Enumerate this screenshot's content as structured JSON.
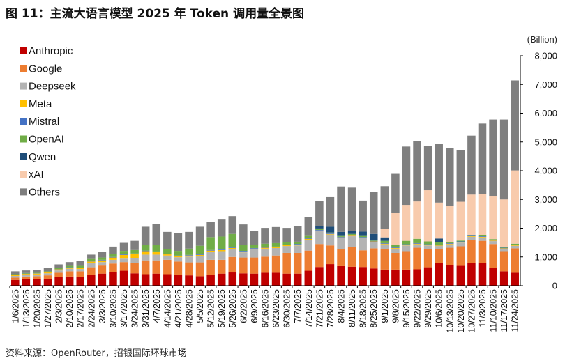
{
  "figure": {
    "title": "图 11：主流大语言模型 2025 年 Token 调用量全景图",
    "source": "资料来源：OpenRouter，招银国际环球市场"
  },
  "chart_data": {
    "type": "bar",
    "stacked": true,
    "unit_label": "(Billion)",
    "y_axis_position": "right",
    "ylim": [
      0,
      8000
    ],
    "yticks": [
      "0",
      "1,000",
      "2,000",
      "3,000",
      "4,000",
      "5,000",
      "6,000",
      "7,000",
      "8,000"
    ],
    "legend_position": "top-left",
    "categories": [
      "1/6/2025",
      "1/13/2025",
      "1/20/2025",
      "1/27/2025",
      "2/3/2025",
      "2/10/2025",
      "2/17/2025",
      "2/24/2025",
      "3/3/2025",
      "3/10/2025",
      "3/17/2025",
      "3/24/2025",
      "3/31/2025",
      "4/7/2025",
      "4/14/2025",
      "4/21/2025",
      "4/28/2025",
      "5/5/2025",
      "5/12/2025",
      "5/19/2025",
      "5/26/2025",
      "6/2/2025",
      "6/9/2025",
      "6/16/2025",
      "6/23/2025",
      "6/30/2025",
      "7/7/2025",
      "7/14/2025",
      "7/21/2025",
      "7/28/2025",
      "8/4/2025",
      "8/11/2025",
      "8/18/2025",
      "8/25/2025",
      "9/1/2025",
      "9/8/2025",
      "9/15/2025",
      "9/22/2025",
      "9/29/2025",
      "10/6/2025",
      "10/13/2025",
      "10/20/2025",
      "10/27/2025",
      "11/3/2025",
      "11/10/2025",
      "11/17/2025",
      "11/24/2025"
    ],
    "series": [
      {
        "name": "Anthropic",
        "color": "#c00000",
        "values": [
          200,
          230,
          230,
          240,
          300,
          320,
          300,
          380,
          420,
          480,
          520,
          430,
          400,
          420,
          400,
          380,
          360,
          330,
          380,
          420,
          460,
          430,
          420,
          450,
          450,
          420,
          420,
          520,
          650,
          750,
          680,
          660,
          650,
          600,
          560,
          560,
          560,
          570,
          640,
          780,
          720,
          690,
          800,
          800,
          620,
          500,
          450
        ]
      },
      {
        "name": "Google",
        "color": "#ed7d31",
        "values": [
          80,
          90,
          100,
          120,
          150,
          180,
          200,
          260,
          280,
          290,
          300,
          350,
          480,
          460,
          500,
          460,
          450,
          480,
          520,
          480,
          540,
          550,
          560,
          560,
          600,
          720,
          720,
          700,
          800,
          650,
          580,
          680,
          580,
          700,
          700,
          580,
          640,
          750,
          640,
          500,
          600,
          680,
          800,
          760,
          830,
          700,
          850
        ]
      },
      {
        "name": "Deepseek",
        "color": "#b3b3b3",
        "values": [
          60,
          60,
          60,
          70,
          80,
          90,
          80,
          140,
          120,
          130,
          120,
          180,
          200,
          200,
          150,
          150,
          200,
          220,
          280,
          300,
          280,
          180,
          280,
          280,
          260,
          240,
          260,
          380,
          450,
          380,
          400,
          380,
          420,
          220,
          180,
          150,
          200,
          120,
          120,
          100,
          120,
          130,
          100,
          120,
          100,
          80,
          90
        ]
      },
      {
        "name": "Meta",
        "color": "#ffc000",
        "values": [
          30,
          30,
          30,
          30,
          40,
          40,
          40,
          60,
          60,
          80,
          130,
          140,
          120,
          90,
          40,
          40,
          40,
          40,
          40,
          40,
          30,
          30,
          30,
          30,
          30,
          30,
          30,
          30,
          20,
          20,
          20,
          20,
          20,
          20,
          20,
          20,
          20,
          20,
          20,
          20,
          20,
          20,
          20,
          20,
          20,
          20,
          20
        ]
      },
      {
        "name": "Mistral",
        "color": "#4472c4",
        "values": [
          10,
          10,
          10,
          10,
          10,
          10,
          10,
          10,
          20,
          20,
          20,
          20,
          20,
          20,
          20,
          20,
          20,
          20,
          20,
          20,
          20,
          20,
          20,
          20,
          20,
          20,
          20,
          20,
          20,
          20,
          20,
          20,
          20,
          20,
          20,
          20,
          20,
          20,
          20,
          20,
          20,
          20,
          20,
          20,
          20,
          20,
          20
        ]
      },
      {
        "name": "OpenAI",
        "color": "#70ad47",
        "values": [
          20,
          20,
          20,
          30,
          40,
          50,
          60,
          80,
          80,
          100,
          120,
          120,
          200,
          220,
          160,
          160,
          220,
          300,
          450,
          450,
          470,
          220,
          120,
          120,
          120,
          80,
          80,
          80,
          50,
          30,
          30,
          40,
          40,
          40,
          80,
          100,
          120,
          150,
          100,
          100,
          40,
          30,
          30,
          30,
          30,
          30,
          30
        ]
      },
      {
        "name": "Qwen",
        "color": "#1f4e79",
        "values": [
          0,
          0,
          0,
          0,
          0,
          0,
          0,
          0,
          0,
          0,
          0,
          0,
          0,
          0,
          0,
          0,
          0,
          0,
          0,
          0,
          0,
          0,
          0,
          0,
          0,
          0,
          0,
          0,
          80,
          200,
          140,
          100,
          150,
          200,
          120,
          0,
          0,
          0,
          0,
          120,
          0,
          0,
          0,
          0,
          0,
          0,
          0
        ]
      },
      {
        "name": "xAI",
        "color": "#f8cbad",
        "values": [
          0,
          0,
          0,
          0,
          0,
          0,
          0,
          0,
          0,
          0,
          0,
          0,
          0,
          0,
          0,
          0,
          0,
          0,
          0,
          0,
          0,
          0,
          0,
          0,
          0,
          0,
          0,
          0,
          0,
          0,
          0,
          0,
          0,
          0,
          300,
          1100,
          1250,
          1300,
          1780,
          1250,
          1260,
          1350,
          1400,
          1450,
          1500,
          1650,
          2550
        ]
      },
      {
        "name": "Others",
        "color": "#7f7f7f",
        "values": [
          100,
          90,
          100,
          110,
          120,
          130,
          160,
          150,
          200,
          260,
          280,
          320,
          630,
          730,
          600,
          620,
          580,
          660,
          540,
          590,
          620,
          700,
          470,
          550,
          560,
          500,
          550,
          670,
          880,
          1030,
          1580,
          1510,
          1080,
          1450,
          1480,
          1360,
          2030,
          2090,
          1530,
          2040,
          2000,
          1790,
          2050,
          2440,
          2660,
          2780,
          3130
        ]
      }
    ]
  }
}
